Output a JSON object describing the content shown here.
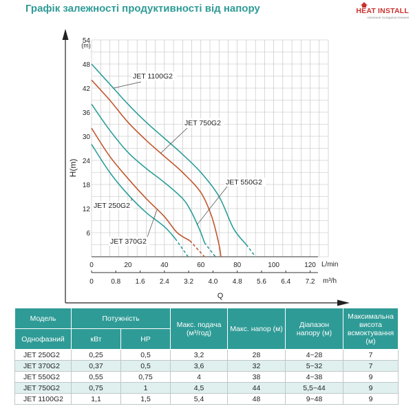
{
  "page": {
    "title": "Графік залежності продуктивності від напору"
  },
  "logo": {
    "text": "HEAT INSTALL",
    "tagline": "опалення та водопостачання"
  },
  "chart_data": {
    "type": "line",
    "title": "",
    "ylabel": "H(m)",
    "yunit": "(m)",
    "xlabel": "Q",
    "ylim": [
      0,
      54
    ],
    "yticks": [
      6,
      12,
      18,
      24,
      30,
      36,
      42,
      48,
      54
    ],
    "grid": true,
    "x_axis_lmin": {
      "unit": "L/min",
      "range": [
        0,
        130
      ],
      "ticks": [
        0,
        20,
        40,
        60,
        80,
        100,
        120
      ]
    },
    "x_axis_m3h": {
      "unit": "m³/h",
      "ticks": [
        "0",
        "0.8",
        "1.6",
        "2.4",
        "3.2",
        "4.0",
        "4.8",
        "5.6",
        "6.4",
        "7.2"
      ]
    },
    "series": [
      {
        "name": "JET 250G2",
        "color": "#2a9d99",
        "points": [
          [
            0,
            28
          ],
          [
            10,
            21
          ],
          [
            20,
            15.5
          ],
          [
            30,
            11
          ],
          [
            40,
            7.5
          ],
          [
            46,
            4.5
          ],
          [
            53,
            0
          ]
        ],
        "dashed_from": 4.5
      },
      {
        "name": "JET 370G2",
        "color": "#c0562d",
        "points": [
          [
            0,
            32
          ],
          [
            10,
            25
          ],
          [
            20,
            19.5
          ],
          [
            30,
            14.5
          ],
          [
            40,
            10
          ],
          [
            47,
            6
          ],
          [
            54,
            4
          ],
          [
            62,
            0
          ]
        ],
        "dashed_from": 4
      },
      {
        "name": "JET 550G2",
        "color": "#2a9d99",
        "points": [
          [
            0,
            38
          ],
          [
            10,
            31.5
          ],
          [
            20,
            26
          ],
          [
            30,
            22
          ],
          [
            40,
            18.5
          ],
          [
            50,
            14.5
          ],
          [
            55,
            11
          ],
          [
            60,
            6
          ],
          [
            62,
            3.5
          ],
          [
            68,
            0
          ]
        ],
        "dashed_from": 3.5
      },
      {
        "name": "JET 750G2",
        "color": "#c0562d",
        "points": [
          [
            0,
            44
          ],
          [
            10,
            39
          ],
          [
            20,
            33.5
          ],
          [
            30,
            29
          ],
          [
            40,
            25
          ],
          [
            50,
            21
          ],
          [
            60,
            16
          ],
          [
            66,
            10
          ],
          [
            70,
            3
          ],
          [
            71,
            0
          ]
        ],
        "dashed_from": null
      },
      {
        "name": "JET 1100G2",
        "color": "#2a9d99",
        "points": [
          [
            0,
            48
          ],
          [
            10,
            43
          ],
          [
            20,
            38
          ],
          [
            30,
            33.5
          ],
          [
            40,
            29.5
          ],
          [
            50,
            25.5
          ],
          [
            60,
            21
          ],
          [
            70,
            15
          ],
          [
            78,
            7
          ],
          [
            85,
            3
          ],
          [
            90,
            0
          ]
        ],
        "dashed_from": 3
      }
    ]
  },
  "table": {
    "headers": {
      "model": "Модель",
      "power": "Потужність",
      "max_flow": "Макс. подача (м³/год)",
      "max_head": "Макс. напор (м)",
      "head_range": "Діапазон напору (м)",
      "suction": "Максимальна висота всмоктування (м)",
      "phase": "Однофазний",
      "kw": "кВт",
      "hp": "HP"
    },
    "rows": [
      {
        "model": "JET 250G2",
        "kw": "0,25",
        "hp": "0,5",
        "flow": "3,2",
        "head": "28",
        "range": "4~28",
        "suction": "7"
      },
      {
        "model": "JET 370G2",
        "kw": "0,37",
        "hp": "0,5",
        "flow": "3,6",
        "head": "32",
        "range": "5~32",
        "suction": "7"
      },
      {
        "model": "JET 550G2",
        "kw": "0,55",
        "hp": "0,75",
        "flow": "4",
        "head": "38",
        "range": "4~38",
        "suction": "9"
      },
      {
        "model": "JET 750G2",
        "kw": "0,75",
        "hp": "1",
        "flow": "4,5",
        "head": "44",
        "range": "5,5~44",
        "suction": "9"
      },
      {
        "model": "JET 1100G2",
        "kw": "1,1",
        "hp": "1,5",
        "flow": "5,4",
        "head": "48",
        "range": "9~48",
        "suction": "9"
      }
    ]
  }
}
